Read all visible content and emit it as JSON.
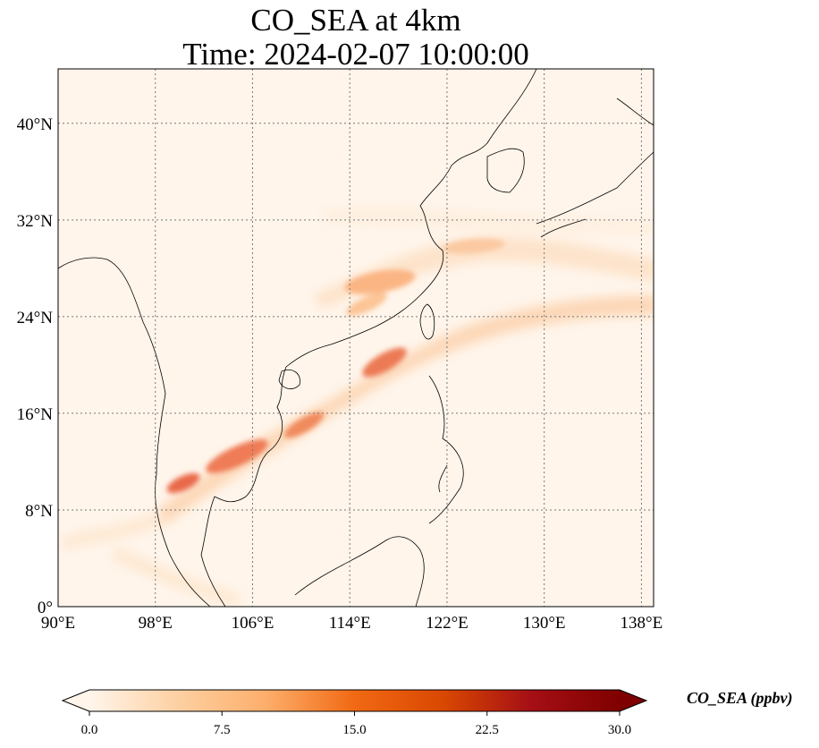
{
  "title": {
    "line1": "CO_SEA at 4km",
    "line2": "Time: 2024-02-07 10:00:00"
  },
  "map": {
    "lon_ticks": [
      "90°E",
      "98°E",
      "106°E",
      "114°E",
      "122°E",
      "130°E",
      "138°E"
    ],
    "lat_ticks": [
      "0°",
      "8°N",
      "16°N",
      "24°N",
      "32°N",
      "40°N"
    ],
    "lon_range": [
      90,
      139
    ],
    "lat_range": [
      0,
      44.5
    ],
    "lon_values": [
      90,
      98,
      106,
      114,
      122,
      130,
      138
    ],
    "lat_values": [
      0,
      8,
      16,
      24,
      32,
      40
    ],
    "gridlines": "dotted",
    "background_color": "#fff5eb",
    "coastline_color": "#000000"
  },
  "colorbar": {
    "label": "CO_SEA (ppbv)",
    "ticks": [
      "0.0",
      "7.5",
      "15.0",
      "22.5",
      "30.0"
    ],
    "tick_values": [
      0,
      7.5,
      15,
      22.5,
      30
    ],
    "range": [
      0,
      30
    ],
    "extend": "both",
    "colormap": [
      "#fff5eb",
      "#fdd0a2",
      "#fdae6b",
      "#f16913",
      "#d94801",
      "#a50f15",
      "#7f0000"
    ]
  }
}
